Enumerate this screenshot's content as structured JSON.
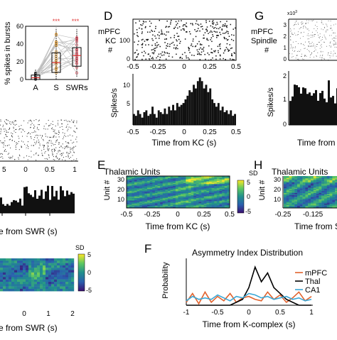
{
  "panels": {
    "boxplot": {
      "ylabel": "% spikes in bursts",
      "yticks": [
        "0",
        "20",
        "40",
        "60"
      ],
      "categories": [
        "A",
        "S",
        "SWRs"
      ],
      "sig": [
        "***",
        "***"
      ]
    },
    "left_raster": {
      "xticks": [
        "5",
        "0",
        "0.5",
        "1"
      ]
    },
    "left_psth": {
      "xlabel": "e from SWR (s)"
    },
    "left_heat": {
      "cbar_label": "SD",
      "cbar_ticks": [
        "5",
        "0",
        "-5"
      ],
      "xticks": [
        "0",
        "1",
        "2"
      ],
      "xlabel": "e from SWR (s)"
    },
    "D": {
      "letter": "D",
      "raster_label_1": "mPFC",
      "raster_label_2": "KC",
      "raster_label_3": "#",
      "raster_yticks": [
        "100",
        "0"
      ],
      "raster_xticks": [
        "-0.5",
        "-0.25",
        "0",
        "0.25",
        "0.5"
      ],
      "psth_ylabel": "Spikes/s",
      "psth_yticks": [
        "10",
        "5"
      ],
      "psth_xticks": [
        "-0.5",
        "-0.25",
        "0",
        "0.25",
        "0.5"
      ],
      "xlabel": "Time from KC (s)"
    },
    "E": {
      "letter": "E",
      "title": "Thalamic Units",
      "ylabel": "Unit #",
      "yticks": [
        "30",
        "20",
        "10"
      ],
      "xticks": [
        "-0.5",
        "-0.25",
        "0",
        "0.25",
        "0.5"
      ],
      "xlabel": "Time from KC (s)",
      "cbar_label": "SD",
      "cbar_ticks": [
        "5",
        "0",
        "-5"
      ]
    },
    "F": {
      "letter": "F",
      "title": "Asymmetry Index Distribution",
      "ylabel": "Probability",
      "xticks": [
        "-1",
        "-0.5",
        "0",
        "0.5",
        "1"
      ],
      "xlabel": "Time from K-complex (s)"
    },
    "G": {
      "letter": "G",
      "raster_label_1": "mPFC",
      "raster_label_2": "Spindle",
      "raster_label_3": "#",
      "exponent": "x10",
      "exponent_sup": "3",
      "raster_yticks": [
        "3",
        "2",
        "1",
        "0"
      ],
      "psth_ylabel": "Spikes/s",
      "psth_yticks": [
        "2",
        "1",
        "0"
      ],
      "xlabel": "Time from"
    },
    "H": {
      "letter": "H",
      "title": "Thalamic Units",
      "ylabel": "Unit #",
      "yticks": [
        "30",
        "20",
        "10"
      ],
      "xticks": [
        "-0.25",
        "-0.125"
      ],
      "xlabel": "Time from Sp"
    }
  },
  "chart_data": [
    {
      "type": "box",
      "categories": [
        "A",
        "S",
        "SWRs"
      ],
      "ylim": [
        0,
        60
      ],
      "values": [
        {
          "median": 2,
          "q1": 0,
          "q3": 5,
          "whisker_low": 0,
          "whisker_high": 12
        },
        {
          "median": 19,
          "q1": 8,
          "q3": 30,
          "whisker_low": 0,
          "whisker_high": 58
        },
        {
          "median": 27,
          "q1": 15,
          "q3": 36,
          "whisker_low": 3,
          "whisker_high": 57
        }
      ]
    },
    {
      "type": "bar",
      "title": "",
      "xlabel": "Time from KC (s)",
      "ylabel": "Spikes/s",
      "xlim": [
        -0.5,
        0.5
      ],
      "ylim": [
        0,
        14
      ],
      "x": [
        -0.49,
        -0.47,
        -0.45,
        -0.43,
        -0.41,
        -0.39,
        -0.37,
        -0.35,
        -0.33,
        -0.31,
        -0.29,
        -0.27,
        -0.25,
        -0.23,
        -0.21,
        -0.19,
        -0.17,
        -0.15,
        -0.13,
        -0.11,
        -0.09,
        -0.07,
        -0.05,
        -0.03,
        -0.01,
        0.01,
        0.03,
        0.05,
        0.07,
        0.09,
        0.11,
        0.13,
        0.15,
        0.17,
        0.19,
        0.21,
        0.23,
        0.25,
        0.27,
        0.29,
        0.31,
        0.33,
        0.35,
        0.37,
        0.39,
        0.41,
        0.43,
        0.45,
        0.47,
        0.49
      ],
      "values": [
        3,
        2.5,
        4,
        3,
        2,
        3.5,
        4,
        2.5,
        3,
        5,
        3,
        2,
        4,
        3.5,
        3,
        4.5,
        3,
        5,
        4,
        5.5,
        4,
        6,
        5,
        5.5,
        6,
        7,
        8,
        9.5,
        9,
        11,
        10,
        12,
        13,
        12,
        10,
        11,
        9,
        10,
        7,
        6,
        5,
        6,
        4,
        5,
        3.5,
        4,
        3,
        4,
        2.5,
        3
      ]
    },
    {
      "type": "heatmap",
      "title": "Thalamic Units",
      "xlabel": "Time from KC (s)",
      "ylabel": "Unit #",
      "xlim": [
        -0.5,
        0.5
      ],
      "ylim": [
        1,
        32
      ],
      "clim": [
        -5,
        5
      ]
    },
    {
      "type": "line",
      "title": "Asymmetry Index Distribution",
      "xlabel": "Time from K-complex (s)",
      "ylabel": "Probability",
      "xlim": [
        -1,
        1
      ],
      "x": [
        -1,
        -0.9,
        -0.8,
        -0.7,
        -0.6,
        -0.5,
        -0.4,
        -0.3,
        -0.2,
        -0.1,
        0,
        0.1,
        0.2,
        0.3,
        0.4,
        0.5,
        0.6,
        0.7,
        0.8,
        0.9,
        1
      ],
      "series": [
        {
          "name": "mPFC",
          "color": "#e1622d",
          "values": [
            0.02,
            0.08,
            0.01,
            0.09,
            0.02,
            0.06,
            0.03,
            0.08,
            0.02,
            0.05,
            0.06,
            0.04,
            0.03,
            0.09,
            0.04,
            0.07,
            0.02,
            0.05,
            0.09,
            0.03,
            0.06
          ]
        },
        {
          "name": "Thal",
          "color": "#000000",
          "values": [
            0,
            0,
            0,
            0,
            0,
            0,
            0,
            0,
            0.02,
            0.04,
            0.12,
            0.26,
            0.16,
            0.22,
            0.12,
            0.08,
            0.04,
            0.02,
            0,
            0,
            0
          ]
        },
        {
          "name": "CA1",
          "color": "#3aa7d6",
          "values": [
            0.03,
            0.06,
            0.04,
            0.05,
            0.04,
            0.07,
            0.05,
            0.03,
            0.06,
            0.05,
            0.08,
            0.07,
            0.05,
            0.06,
            0.04,
            0.05,
            0.06,
            0.04,
            0.05,
            0.03,
            0.04
          ]
        }
      ]
    }
  ]
}
